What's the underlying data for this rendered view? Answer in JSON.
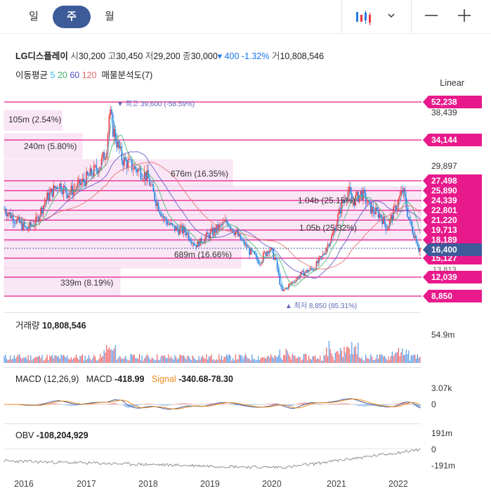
{
  "tabs": [
    "일",
    "주",
    "월"
  ],
  "active_tab": "주",
  "stock": {
    "name": "LG디스플레이",
    "open_label": "시",
    "open": "30,200",
    "high_label": "고",
    "high": "30,450",
    "low_label": "저",
    "low": "29,200",
    "close_label": "종",
    "close": "30,000",
    "change": "▾ 400 -1.32%",
    "volume_label": "거",
    "volume": "10,808,546"
  },
  "indicators": {
    "ma_label": "이동평균",
    "ma_periods": [
      "5",
      "20",
      "60",
      "120"
    ],
    "ma_colors": [
      "#35b8e0",
      "#3fb46e",
      "#5a56c8",
      "#e56b6b"
    ],
    "vp_label": "매물분석도(7)"
  },
  "scale_mode": "Linear",
  "price_tags": [
    {
      "text": "52,238",
      "color": "#e8198b"
    },
    {
      "text": "34,144",
      "color": "#e8198b"
    },
    {
      "text": "27,498",
      "color": "#e8198b"
    },
    {
      "text": "25,890",
      "color": "#e8198b"
    },
    {
      "text": "24,339",
      "color": "#e8198b"
    },
    {
      "text": "22,801",
      "color": "#e8198b"
    },
    {
      "text": "21,220",
      "color": "#e8198b"
    },
    {
      "text": "19,713",
      "color": "#e8198b"
    },
    {
      "text": "18,189",
      "color": "#e8198b"
    },
    {
      "text": "16,400",
      "color": "#3d5a99"
    },
    {
      "text": "15,127",
      "color": "#e8198b"
    },
    {
      "text": "12,039",
      "color": "#e8198b"
    },
    {
      "text": "8,850",
      "color": "#e8198b"
    }
  ],
  "price_axis": [
    "38,439",
    "29,897",
    "13,813"
  ],
  "volume_profile": [
    {
      "text": "105m (2.54%)"
    },
    {
      "text": "240m (5.80%)"
    },
    {
      "text": "676m (16.35%)"
    },
    {
      "text": "1.04b (25.15%)"
    },
    {
      "text": "1.05b (25.32%)"
    },
    {
      "text": "689m (16.66%)"
    },
    {
      "text": "339m (8.19%)"
    }
  ],
  "extremes": {
    "high": "▼ 최고 39,600 (-58.59%)",
    "low": "▲ 최저 8,850 (85.31%)"
  },
  "volume_panel": {
    "label": "거래량",
    "value": "10,808,546",
    "axis": "54.9m"
  },
  "macd_panel": {
    "label": "MACD (12,26,9)",
    "macd_label": "MACD",
    "macd_value": "-418.99",
    "signal_label": "Signal",
    "signal_value": "-340.68",
    "hist_value": "-78.30",
    "axis_top": "3.07k",
    "axis_zero": "0"
  },
  "obv_panel": {
    "label": "OBV",
    "value": "-108,204,929",
    "axis_top": "191m",
    "axis_zero": "0",
    "axis_bottom": "-191m"
  },
  "years": [
    "2016",
    "2017",
    "2018",
    "2019",
    "2020",
    "2021",
    "2022"
  ],
  "colors": {
    "up": "#e8383d",
    "down": "#2b7be0",
    "accent": "#3d5a99",
    "level": "#e8198b"
  },
  "chart_data": {
    "type": "candlestick",
    "x_range": [
      "2015-11",
      "2022-04"
    ],
    "y_range": [
      8850,
      39600
    ],
    "support_resistance": [
      52238,
      34144,
      27498,
      25890,
      24339,
      22801,
      21220,
      19713,
      18189,
      15127,
      12039,
      8850
    ],
    "current_price": 16400,
    "high": 39600,
    "low": 8850,
    "price_path": [
      [
        2015.85,
        23000
      ],
      [
        2016.0,
        21500
      ],
      [
        2016.2,
        19800
      ],
      [
        2016.35,
        21000
      ],
      [
        2016.5,
        24500
      ],
      [
        2016.7,
        27000
      ],
      [
        2016.85,
        25500
      ],
      [
        2017.0,
        26500
      ],
      [
        2017.2,
        28500
      ],
      [
        2017.35,
        30000
      ],
      [
        2017.45,
        32500
      ],
      [
        2017.5,
        38500
      ],
      [
        2017.55,
        36000
      ],
      [
        2017.7,
        31000
      ],
      [
        2017.9,
        29500
      ],
      [
        2018.0,
        29000
      ],
      [
        2018.1,
        28000
      ],
      [
        2018.2,
        25000
      ],
      [
        2018.35,
        21500
      ],
      [
        2018.5,
        20000
      ],
      [
        2018.7,
        19500
      ],
      [
        2018.85,
        17000
      ],
      [
        2019.0,
        18500
      ],
      [
        2019.2,
        20000
      ],
      [
        2019.35,
        21000
      ],
      [
        2019.5,
        19000
      ],
      [
        2019.7,
        16000
      ],
      [
        2019.85,
        14500
      ],
      [
        2020.0,
        16500
      ],
      [
        2020.1,
        15000
      ],
      [
        2020.2,
        9500
      ],
      [
        2020.35,
        11000
      ],
      [
        2020.5,
        12500
      ],
      [
        2020.7,
        13500
      ],
      [
        2020.85,
        15500
      ],
      [
        2021.0,
        19000
      ],
      [
        2021.15,
        24000
      ],
      [
        2021.25,
        26000
      ],
      [
        2021.3,
        24000
      ],
      [
        2021.45,
        25500
      ],
      [
        2021.6,
        23000
      ],
      [
        2021.75,
        22000
      ],
      [
        2021.85,
        20000
      ],
      [
        2022.0,
        23500
      ],
      [
        2022.1,
        26000
      ],
      [
        2022.2,
        21000
      ],
      [
        2022.3,
        18500
      ],
      [
        2022.35,
        16400
      ]
    ]
  }
}
